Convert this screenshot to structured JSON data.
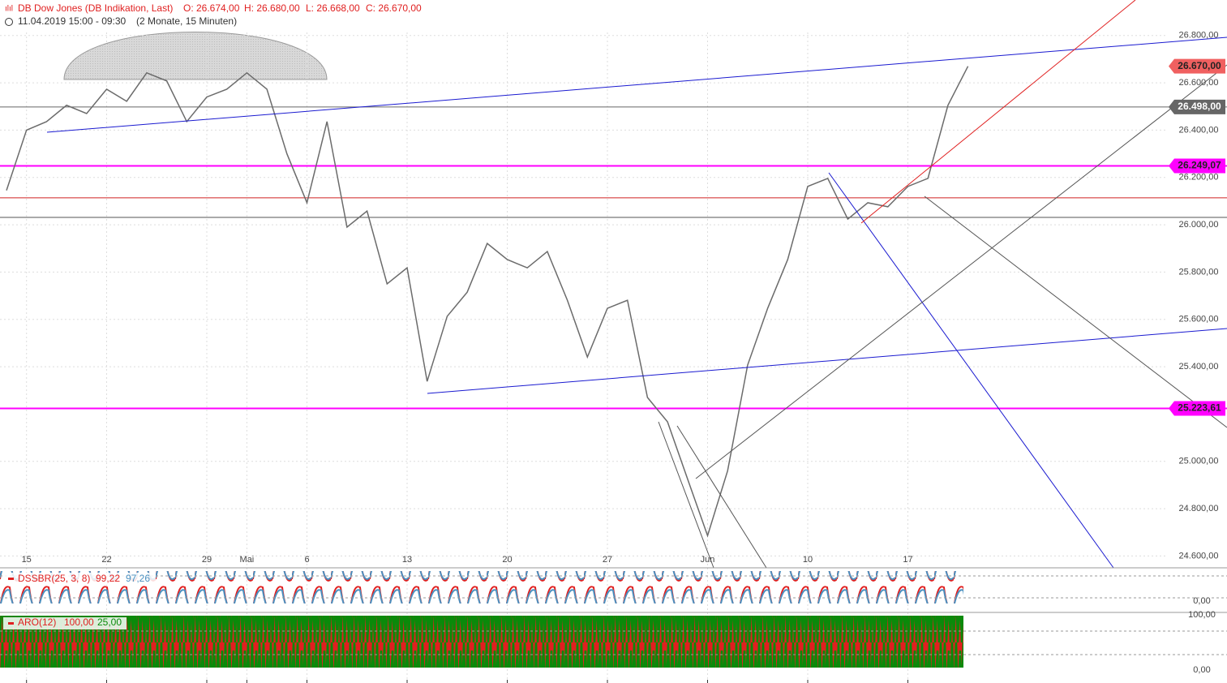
{
  "header": {
    "instrument": "DB Dow Jones (DB Indikation, Last)",
    "open": "O: 26.674,00",
    "high": "H: 26.680,00",
    "low": "L: 26.668,00",
    "close": "C: 26.670,00",
    "period": "11.04.2019 15:00 - 09:30",
    "range": "(2 Monate, 15 Minuten)"
  },
  "chart_data": {
    "type": "line",
    "categories": [
      null,
      "15",
      null,
      null,
      null,
      "22",
      null,
      null,
      null,
      null,
      "29",
      null,
      "Mai",
      null,
      null,
      "6",
      null,
      null,
      null,
      null,
      "13",
      null,
      null,
      null,
      null,
      "20",
      null,
      null,
      null,
      null,
      "27",
      null,
      null,
      null,
      null,
      "Jun",
      null,
      null,
      null,
      null,
      "10",
      null,
      null,
      null,
      null,
      "17",
      null,
      null,
      null
    ],
    "series": [
      {
        "name": "DB Dow Jones",
        "color": "#6b6b6b",
        "values": [
          26145,
          26400,
          26436,
          26505,
          26470,
          26573,
          26522,
          26642,
          26608,
          26436,
          26540,
          26573,
          26642,
          26573,
          26300,
          26093,
          26436,
          25990,
          26058,
          25750,
          25818,
          25338,
          25613,
          25715,
          25921,
          25853,
          25818,
          25887,
          25681,
          25441,
          25647,
          25681,
          25270,
          25167,
          24926,
          24686,
          24960,
          25407,
          25647,
          25853,
          26162,
          26196,
          26024,
          26093,
          26076,
          26162,
          26196,
          26505,
          26670
        ]
      }
    ],
    "ylim": [
      24550,
      26950
    ],
    "yticks": [
      {
        "value": 24600,
        "label": "24.600,00"
      },
      {
        "value": 24800,
        "label": "24.800,00"
      },
      {
        "value": 25000,
        "label": "25.000,00"
      },
      {
        "value": 25400,
        "label": "25.400,00"
      },
      {
        "value": 25600,
        "label": "25.600,00"
      },
      {
        "value": 25800,
        "label": "25.800,00"
      },
      {
        "value": 26000,
        "label": "26.000,00"
      },
      {
        "value": 26200,
        "label": "26.200,00"
      },
      {
        "value": 26400,
        "label": "26.400,00"
      },
      {
        "value": 26600,
        "label": "26.600,00"
      },
      {
        "value": 26800,
        "label": "26.800,00"
      }
    ],
    "grid": true,
    "levels": [
      {
        "value": 26670,
        "label": "26.670,00",
        "color": "#f06060"
      },
      {
        "value": 26498,
        "label": "26.498,00",
        "color": "#666666"
      },
      {
        "value": 26249.07,
        "label": "26.249,07",
        "color": "#ff00ff"
      },
      {
        "value": 25223.61,
        "label": "25.223,61",
        "color": "#ff00ff"
      }
    ],
    "lines": [
      {
        "value": 26114,
        "color": "#d02020"
      },
      {
        "value": 26031,
        "color": "#555555"
      }
    ],
    "indicators": [
      {
        "name": "DSSBR(25, 3, 8)",
        "v1": "99,22",
        "v2": "97,26",
        "axis": [
          "0,00"
        ]
      },
      {
        "name": "ARO(12)",
        "v1": "100,00",
        "v2": "25,00",
        "axis": [
          "100,00",
          "0,00"
        ]
      }
    ]
  }
}
